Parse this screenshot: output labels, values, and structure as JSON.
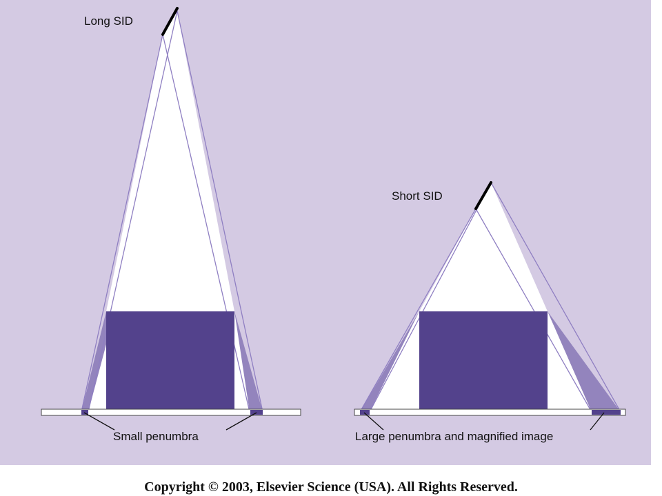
{
  "labels": {
    "long_sid": "Long SID",
    "short_sid": "Short SID",
    "small_penumbra": "Small penumbra",
    "large_penumbra": "Large penumbra and magnified image"
  },
  "copyright": "Copyright © 2003, Elsevier Science (USA). All Rights Reserved.",
  "colors": {
    "background": "#d4cae3",
    "object": "#53428c",
    "penumbra": "#9384bd",
    "ray": "#8f7fc2",
    "beam": "#ffffff",
    "source": "#000000"
  }
}
